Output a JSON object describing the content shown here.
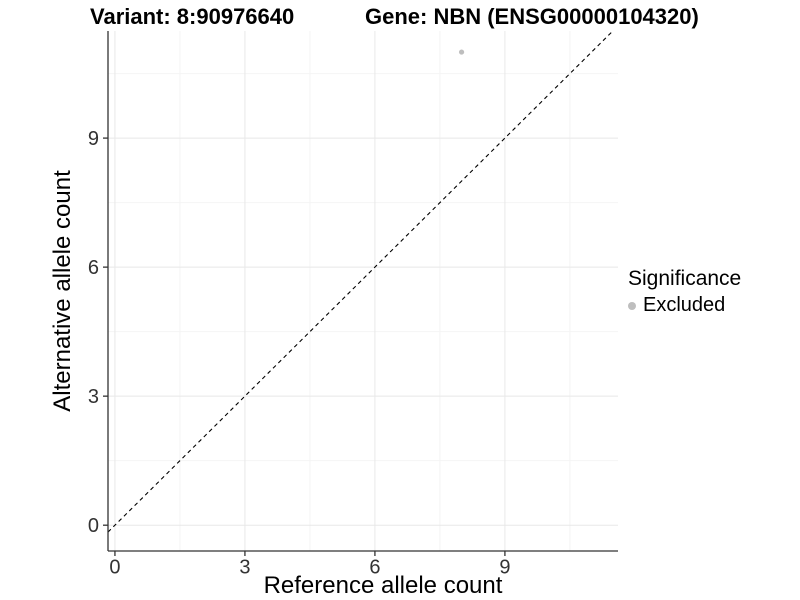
{
  "chart_data": {
    "type": "scatter",
    "title_left": "Variant: 8:90976640",
    "title_right": "Gene: NBN (ENSG00000104320)",
    "xlabel": "Reference allele count",
    "ylabel": "Alternative allele count",
    "xlim": [
      -0.16,
      11.61
    ],
    "ylim": [
      -0.6,
      11.49
    ],
    "x_ticks": [
      0,
      3,
      6,
      9
    ],
    "y_ticks": [
      0,
      3,
      6,
      9
    ],
    "x_minor_ticks": [
      1.5,
      4.5,
      7.5,
      10.5
    ],
    "y_minor_ticks": [
      1.5,
      4.5,
      7.5,
      10.5
    ],
    "grid": true,
    "points": [
      {
        "x": 8,
        "y": 11,
        "series": "Excluded"
      }
    ],
    "reference_line": {
      "type": "identity",
      "slope": 1,
      "intercept": 0,
      "style": "dashed",
      "color": "#000000"
    },
    "legend": {
      "title": "Significance",
      "position": "right",
      "items": [
        {
          "label": "Excluded",
          "color": "#bebebe"
        }
      ]
    },
    "colors": {
      "axis": "#333333",
      "tick_label": "#333333",
      "grid_major": "#e8e8e8",
      "grid_minor": "#f4f4f4",
      "point": "#bebebe",
      "background": "#ffffff"
    }
  }
}
